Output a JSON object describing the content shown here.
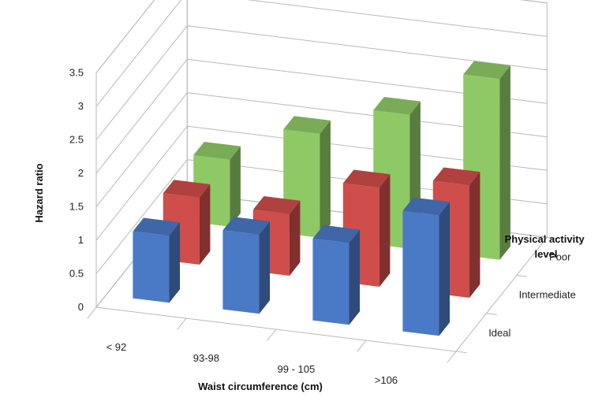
{
  "chart_data": {
    "type": "bar",
    "subtype": "3d-clustered-bar",
    "title": "",
    "xlabel": "Waist circumference (cm)",
    "ylabel": "Hazard ratio",
    "zlabel": "Physical activity level",
    "categories": [
      "< 92",
      "93-98",
      "99 - 105",
      ">106"
    ],
    "ylim": [
      0,
      3.5
    ],
    "yticks": [
      "0",
      "0.5",
      "1",
      "1.5",
      "2",
      "2.5",
      "3",
      "3.5"
    ],
    "grid": true,
    "series": [
      {
        "name": "Ideal",
        "color": "#4a79c6",
        "values": [
          1.0,
          1.18,
          1.22,
          1.8
        ]
      },
      {
        "name": "Intermediate",
        "color": "#cf4d4a",
        "values": [
          1.0,
          0.92,
          1.48,
          1.68
        ]
      },
      {
        "name": "Poor",
        "color": "#8fc965",
        "values": [
          1.0,
          1.55,
          2.0,
          2.7
        ]
      }
    ]
  }
}
